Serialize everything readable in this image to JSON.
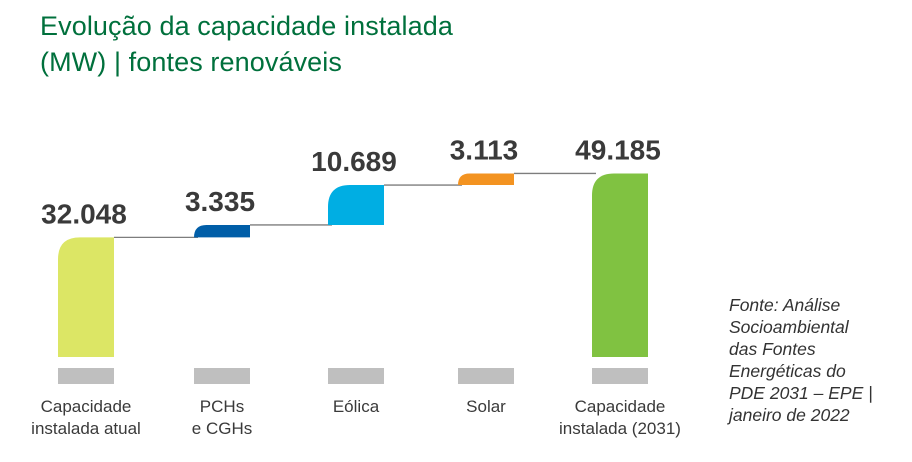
{
  "title_lines": [
    "Evolução da capacidade instalada",
    "(MW) | fontes renováveis"
  ],
  "source_lines": [
    "Fonte: Análise",
    "Socioambiental",
    "das Fontes",
    "Energéticas do",
    "PDE 2031 – EPE |",
    "janeiro de 2022"
  ],
  "colors": {
    "title": "#00703c",
    "connector": "#7d7d7d",
    "tick": "#bfbfbf",
    "value_text": "#3a3a3a",
    "label_text": "#3a3a3a"
  },
  "chart_data": {
    "type": "bar",
    "subtype": "waterfall",
    "categories": [
      [
        "Capacidade",
        "instalada atual"
      ],
      [
        "PCHs",
        "e CGHs"
      ],
      [
        "Eólica"
      ],
      [
        "Solar"
      ],
      [
        "Capacidade",
        "instalada (2031)"
      ]
    ],
    "values": [
      32048,
      3335,
      10689,
      3113,
      49185
    ],
    "value_labels": [
      "32.048",
      "3.335",
      "10.689",
      "3.113",
      "49.185"
    ],
    "bar_kinds": [
      "total",
      "increase",
      "increase",
      "increase",
      "total"
    ],
    "bar_colors": [
      "#dce665",
      "#005ea8",
      "#00aee3",
      "#f39321",
      "#80c241"
    ],
    "y_axis_visible": false,
    "grid": false,
    "legend": "none"
  }
}
